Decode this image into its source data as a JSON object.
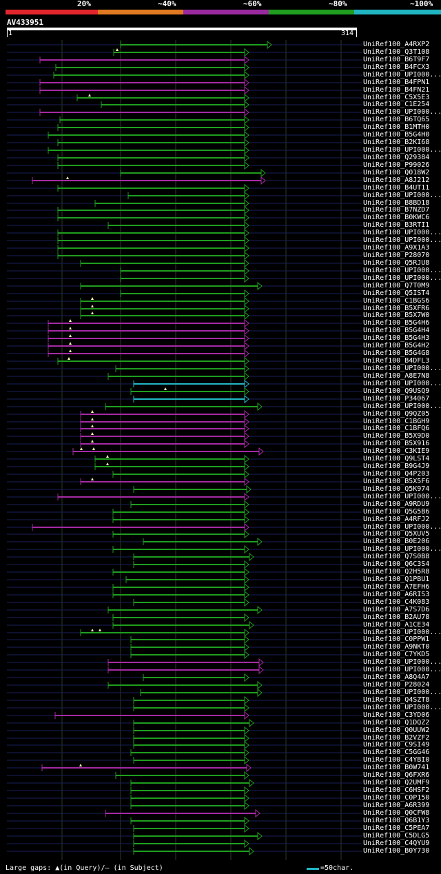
{
  "legend": [
    {
      "label": "20%",
      "color": "#e3262d"
    },
    {
      "label": "~40%",
      "color": "#e07a20"
    },
    {
      "label": "~60%",
      "color": "#9a2aa0"
    },
    {
      "label": "~80%",
      "color": "#1f9e1f"
    },
    {
      "label": "~100%",
      "color": "#21b5c2"
    }
  ],
  "query": {
    "name": "AV433951",
    "start": "1",
    "end": "314"
  },
  "colors": {
    "green": "#1f9e1f",
    "magenta": "#a52aa5",
    "cyan": "#22b8c8",
    "guide": "#1a1f5a",
    "grid": "#2a3a2a"
  },
  "hits": [
    {
      "name": "UniRef100_A4RXP2",
      "start": 175,
      "end": 394,
      "color": "green",
      "arrow": "full",
      "gaps": []
    },
    {
      "name": "UniRef100_Q3T108",
      "start": 165,
      "end": 361,
      "color": "green",
      "arrow": "full",
      "gaps": [
        170
      ]
    },
    {
      "name": "UniRef100_B6T9F7",
      "start": 58,
      "end": 361,
      "color": "magenta",
      "arrow": "full",
      "gaps": []
    },
    {
      "name": "UniRef100_B4FCX3",
      "start": 81,
      "end": 361,
      "color": "green",
      "arrow": "full",
      "gaps": []
    },
    {
      "name": "UniRef100_UPI000...",
      "start": 78,
      "end": 361,
      "color": "green",
      "arrow": "full",
      "gaps": []
    },
    {
      "name": "UniRef100_B4FPN1",
      "start": 58,
      "end": 361,
      "color": "magenta",
      "arrow": "full",
      "gaps": []
    },
    {
      "name": "UniRef100_B4FN21",
      "start": 58,
      "end": 361,
      "color": "magenta",
      "arrow": "full",
      "gaps": []
    },
    {
      "name": "UniRef100_C5X5E3",
      "start": 112,
      "end": 361,
      "color": "green",
      "arrow": "full",
      "gaps": [
        130
      ]
    },
    {
      "name": "UniRef100_C1E254",
      "start": 147,
      "end": 361,
      "color": "green",
      "arrow": "full",
      "gaps": []
    },
    {
      "name": "UniRef100_UPI000...",
      "start": 58,
      "end": 361,
      "color": "magenta",
      "arrow": "full",
      "gaps": []
    },
    {
      "name": "UniRef100_B6TQ65",
      "start": 87,
      "end": 361,
      "color": "green",
      "arrow": "full",
      "gaps": []
    },
    {
      "name": "UniRef100_B1MTH0",
      "start": 84,
      "end": 361,
      "color": "green",
      "arrow": "full",
      "gaps": []
    },
    {
      "name": "UniRef100_B5G4H0",
      "start": 70,
      "end": 361,
      "color": "green",
      "arrow": "full",
      "gaps": []
    },
    {
      "name": "UniRef100_B2KI68",
      "start": 84,
      "end": 361,
      "color": "green",
      "arrow": "full",
      "gaps": []
    },
    {
      "name": "UniRef100_UPI000...",
      "start": 70,
      "end": 361,
      "color": "green",
      "arrow": "full",
      "gaps": []
    },
    {
      "name": "UniRef100_Q29384",
      "start": 84,
      "end": 361,
      "color": "green",
      "arrow": "full",
      "gaps": []
    },
    {
      "name": "UniRef100_P99026",
      "start": 84,
      "end": 361,
      "color": "green",
      "arrow": "full",
      "gaps": []
    },
    {
      "name": "UniRef100_Q018W2",
      "start": 175,
      "end": 385,
      "color": "green",
      "arrow": "full",
      "gaps": []
    },
    {
      "name": "UniRef100_A8J212",
      "start": 47,
      "end": 385,
      "color": "magenta",
      "arrow": "full",
      "gaps": [
        98
      ]
    },
    {
      "name": "UniRef100_B4UT11",
      "start": 84,
      "end": 361,
      "color": "green",
      "arrow": "full",
      "gaps": []
    },
    {
      "name": "UniRef100_UPI000...",
      "start": 186,
      "end": 361,
      "color": "green",
      "arrow": "full",
      "gaps": []
    },
    {
      "name": "UniRef100_B8BD18",
      "start": 138,
      "end": 361,
      "color": "green",
      "arrow": "full",
      "gaps": []
    },
    {
      "name": "UniRef100_B7NZD7",
      "start": 84,
      "end": 361,
      "color": "green",
      "arrow": "full",
      "gaps": []
    },
    {
      "name": "UniRef100_B0KWC6",
      "start": 84,
      "end": 361,
      "color": "green",
      "arrow": "full",
      "gaps": []
    },
    {
      "name": "UniRef100_B3RTI1",
      "start": 157,
      "end": 361,
      "color": "green",
      "arrow": "full",
      "gaps": []
    },
    {
      "name": "UniRef100_UPI000...",
      "start": 84,
      "end": 361,
      "color": "green",
      "arrow": "full",
      "gaps": []
    },
    {
      "name": "UniRef100_UPI000...",
      "start": 84,
      "end": 361,
      "color": "green",
      "arrow": "full",
      "gaps": []
    },
    {
      "name": "UniRef100_A9X1A3",
      "start": 84,
      "end": 361,
      "color": "green",
      "arrow": "full",
      "gaps": []
    },
    {
      "name": "UniRef100_P28070",
      "start": 84,
      "end": 361,
      "color": "green",
      "arrow": "full",
      "gaps": []
    },
    {
      "name": "UniRef100_Q5RJU8",
      "start": 117,
      "end": 361,
      "color": "green",
      "arrow": "full",
      "gaps": []
    },
    {
      "name": "UniRef100_UPI000...",
      "start": 175,
      "end": 361,
      "color": "green",
      "arrow": "full",
      "gaps": []
    },
    {
      "name": "UniRef100_UPI000...",
      "start": 175,
      "end": 361,
      "color": "green",
      "arrow": "full",
      "gaps": []
    },
    {
      "name": "UniRef100_Q7T0M9",
      "start": 117,
      "end": 380,
      "color": "green",
      "arrow": "full",
      "gaps": []
    },
    {
      "name": "UniRef100_Q5IST4",
      "start": 175,
      "end": 361,
      "color": "green",
      "arrow": "full",
      "gaps": []
    },
    {
      "name": "UniRef100_C1BGS6",
      "start": 117,
      "end": 361,
      "color": "green",
      "arrow": "full",
      "gaps": [
        134
      ]
    },
    {
      "name": "UniRef100_B5XFR6",
      "start": 117,
      "end": 361,
      "color": "green",
      "arrow": "full",
      "gaps": [
        134
      ]
    },
    {
      "name": "UniRef100_B5X7W0",
      "start": 117,
      "end": 361,
      "color": "green",
      "arrow": "full",
      "gaps": [
        134
      ]
    },
    {
      "name": "UniRef100_B5G4H6",
      "start": 70,
      "end": 361,
      "color": "magenta",
      "arrow": "full",
      "gaps": [
        102
      ]
    },
    {
      "name": "UniRef100_B5G4H4",
      "start": 70,
      "end": 361,
      "color": "magenta",
      "arrow": "full",
      "gaps": [
        102
      ]
    },
    {
      "name": "UniRef100_B5G4H3",
      "start": 70,
      "end": 361,
      "color": "magenta",
      "arrow": "full",
      "gaps": [
        102
      ]
    },
    {
      "name": "UniRef100_B5G4H2",
      "start": 70,
      "end": 361,
      "color": "magenta",
      "arrow": "full",
      "gaps": [
        102
      ]
    },
    {
      "name": "UniRef100_B5G4G8",
      "start": 70,
      "end": 361,
      "color": "magenta",
      "arrow": "full",
      "gaps": [
        102
      ]
    },
    {
      "name": "UniRef100_B4DFL3",
      "start": 84,
      "end": 361,
      "color": "green",
      "arrow": "full",
      "gaps": [
        100
      ]
    },
    {
      "name": "UniRef100_UPI000...",
      "start": 168,
      "end": 361,
      "color": "green",
      "arrow": "full",
      "gaps": []
    },
    {
      "name": "UniRef100_A8E7N8",
      "start": 157,
      "end": 361,
      "color": "green",
      "arrow": "full",
      "gaps": []
    },
    {
      "name": "UniRef100_UPI000...",
      "start": 194,
      "end": 361,
      "color": "cyan",
      "arrow": "full",
      "gaps": []
    },
    {
      "name": "UniRef100_Q9USQ9",
      "start": 190,
      "end": 361,
      "color": "green",
      "arrow": "full",
      "gaps": [
        240
      ]
    },
    {
      "name": "UniRef100_P34067",
      "start": 194,
      "end": 361,
      "color": "cyan",
      "arrow": "full",
      "gaps": []
    },
    {
      "name": "UniRef100_UPI000...",
      "start": 153,
      "end": 380,
      "color": "green",
      "arrow": "full",
      "gaps": []
    },
    {
      "name": "UniRef100_Q9QZ05",
      "start": 117,
      "end": 361,
      "color": "magenta",
      "arrow": "full",
      "gaps": [
        134
      ]
    },
    {
      "name": "UniRef100_C1BGH9",
      "start": 117,
      "end": 361,
      "color": "magenta",
      "arrow": "full",
      "gaps": [
        134
      ]
    },
    {
      "name": "UniRef100_C1BFQ6",
      "start": 117,
      "end": 361,
      "color": "magenta",
      "arrow": "full",
      "gaps": [
        134
      ]
    },
    {
      "name": "UniRef100_B5X9D0",
      "start": 117,
      "end": 361,
      "color": "magenta",
      "arrow": "full",
      "gaps": [
        134
      ]
    },
    {
      "name": "UniRef100_B5X916",
      "start": 117,
      "end": 361,
      "color": "magenta",
      "arrow": "full",
      "gaps": [
        134
      ]
    },
    {
      "name": "UniRef100_C3KIE9",
      "start": 106,
      "end": 382,
      "color": "magenta",
      "arrow": "full",
      "gaps": [
        118,
        136
      ]
    },
    {
      "name": "UniRef100_Q9LST4",
      "start": 138,
      "end": 361,
      "color": "green",
      "arrow": "full",
      "gaps": [
        156
      ]
    },
    {
      "name": "UniRef100_B9G4J9",
      "start": 138,
      "end": 361,
      "color": "green",
      "arrow": "full",
      "gaps": [
        156
      ]
    },
    {
      "name": "UniRef100_Q4P203",
      "start": 164,
      "end": 361,
      "color": "green",
      "arrow": "full",
      "gaps": []
    },
    {
      "name": "UniRef100_B5X5F6",
      "start": 117,
      "end": 361,
      "color": "magenta",
      "arrow": "full",
      "gaps": [
        134
      ]
    },
    {
      "name": "UniRef100_Q5K974",
      "start": 194,
      "end": 364,
      "color": "green",
      "arrow": "full",
      "gaps": []
    },
    {
      "name": "UniRef100_UPI000...",
      "start": 84,
      "end": 361,
      "color": "magenta",
      "arrow": "full",
      "gaps": []
    },
    {
      "name": "UniRef100_A9RDU9",
      "start": 190,
      "end": 361,
      "color": "green",
      "arrow": "full",
      "gaps": []
    },
    {
      "name": "UniRef100_Q5G5B6",
      "start": 164,
      "end": 361,
      "color": "green",
      "arrow": "full",
      "gaps": []
    },
    {
      "name": "UniRef100_A4RFJ2",
      "start": 164,
      "end": 361,
      "color": "green",
      "arrow": "full",
      "gaps": []
    },
    {
      "name": "UniRef100_UPI000...",
      "start": 47,
      "end": 361,
      "color": "magenta",
      "arrow": "full",
      "gaps": []
    },
    {
      "name": "UniRef100_Q5XUV5",
      "start": 164,
      "end": 361,
      "color": "green",
      "arrow": "full",
      "gaps": []
    },
    {
      "name": "UniRef100_B0E206",
      "start": 208,
      "end": 380,
      "color": "green",
      "arrow": "full",
      "gaps": []
    },
    {
      "name": "UniRef100_UPI000...",
      "start": 164,
      "end": 361,
      "color": "green",
      "arrow": "full",
      "gaps": []
    },
    {
      "name": "UniRef100_Q7S0B8",
      "start": 194,
      "end": 368,
      "color": "green",
      "arrow": "full",
      "gaps": []
    },
    {
      "name": "UniRef100_Q6C3S4",
      "start": 194,
      "end": 361,
      "color": "green",
      "arrow": "full",
      "gaps": []
    },
    {
      "name": "UniRef100_Q2H5R8",
      "start": 164,
      "end": 361,
      "color": "green",
      "arrow": "full",
      "gaps": []
    },
    {
      "name": "UniRef100_Q1PBU1",
      "start": 183,
      "end": 361,
      "color": "green",
      "arrow": "full",
      "gaps": []
    },
    {
      "name": "UniRef100_A7EFH6",
      "start": 164,
      "end": 361,
      "color": "green",
      "arrow": "full",
      "gaps": []
    },
    {
      "name": "UniRef100_A6RIS3",
      "start": 164,
      "end": 361,
      "color": "green",
      "arrow": "full",
      "gaps": []
    },
    {
      "name": "UniRef100_C4K083",
      "start": 194,
      "end": 361,
      "color": "green",
      "arrow": "full",
      "gaps": []
    },
    {
      "name": "UniRef100_A7S7D6",
      "start": 157,
      "end": 380,
      "color": "green",
      "arrow": "full",
      "gaps": []
    },
    {
      "name": "UniRef100_B2AU78",
      "start": 164,
      "end": 361,
      "color": "green",
      "arrow": "full",
      "gaps": []
    },
    {
      "name": "UniRef100_A1CE34",
      "start": 164,
      "end": 368,
      "color": "green",
      "arrow": "full",
      "gaps": []
    },
    {
      "name": "UniRef100_UPI000...",
      "start": 117,
      "end": 361,
      "color": "green",
      "arrow": "full",
      "gaps": [
        134,
        145
      ]
    },
    {
      "name": "UniRef100_C0PPW1",
      "start": 190,
      "end": 361,
      "color": "green",
      "arrow": "full",
      "gaps": []
    },
    {
      "name": "UniRef100_A9NKT0",
      "start": 190,
      "end": 361,
      "color": "green",
      "arrow": "full",
      "gaps": []
    },
    {
      "name": "UniRef100_C7YKD5",
      "start": 190,
      "end": 361,
      "color": "green",
      "arrow": "full",
      "gaps": []
    },
    {
      "name": "UniRef100_UPI000...",
      "start": 157,
      "end": 382,
      "color": "magenta",
      "arrow": "full",
      "gaps": []
    },
    {
      "name": "UniRef100_UPI000...",
      "start": 157,
      "end": 382,
      "color": "magenta",
      "arrow": "full",
      "gaps": []
    },
    {
      "name": "UniRef100_A8Q4A7",
      "start": 208,
      "end": 361,
      "color": "green",
      "arrow": "full",
      "gaps": []
    },
    {
      "name": "UniRef100_P28024",
      "start": 157,
      "end": 380,
      "color": "green",
      "arrow": "full",
      "gaps": []
    },
    {
      "name": "UniRef100_UPI000...",
      "start": 204,
      "end": 380,
      "color": "green",
      "arrow": "full",
      "gaps": []
    },
    {
      "name": "UniRef100_Q4SZT8",
      "start": 194,
      "end": 361,
      "color": "green",
      "arrow": "full",
      "gaps": []
    },
    {
      "name": "UniRef100_UPI000...",
      "start": 194,
      "end": 361,
      "color": "green",
      "arrow": "full",
      "gaps": []
    },
    {
      "name": "UniRef100_C3YD06",
      "start": 80,
      "end": 361,
      "color": "magenta",
      "arrow": "full",
      "gaps": []
    },
    {
      "name": "UniRef100_Q1DQZ2",
      "start": 194,
      "end": 368,
      "color": "green",
      "arrow": "full",
      "gaps": []
    },
    {
      "name": "UniRef100_Q0UUW2",
      "start": 194,
      "end": 361,
      "color": "green",
      "arrow": "full",
      "gaps": []
    },
    {
      "name": "UniRef100_B2VZF2",
      "start": 194,
      "end": 361,
      "color": "green",
      "arrow": "full",
      "gaps": []
    },
    {
      "name": "UniRef100_C9SI49",
      "start": 194,
      "end": 361,
      "color": "green",
      "arrow": "full",
      "gaps": []
    },
    {
      "name": "UniRef100_C5GG46",
      "start": 190,
      "end": 361,
      "color": "green",
      "arrow": "full",
      "gaps": []
    },
    {
      "name": "UniRef100_C4YBI0",
      "start": 194,
      "end": 361,
      "color": "green",
      "arrow": "full",
      "gaps": []
    },
    {
      "name": "UniRef100_B0W741",
      "start": 61,
      "end": 364,
      "color": "magenta",
      "arrow": "full",
      "gaps": [
        117
      ]
    },
    {
      "name": "UniRef100_Q6FXR6",
      "start": 168,
      "end": 361,
      "color": "green",
      "arrow": "full",
      "gaps": []
    },
    {
      "name": "UniRef100_Q2UMF9",
      "start": 190,
      "end": 368,
      "color": "green",
      "arrow": "full",
      "gaps": []
    },
    {
      "name": "UniRef100_C6HSF2",
      "start": 190,
      "end": 361,
      "color": "green",
      "arrow": "full",
      "gaps": []
    },
    {
      "name": "UniRef100_C0P150",
      "start": 190,
      "end": 361,
      "color": "green",
      "arrow": "full",
      "gaps": []
    },
    {
      "name": "UniRef100_A6R399",
      "start": 190,
      "end": 361,
      "color": "green",
      "arrow": "full",
      "gaps": []
    },
    {
      "name": "UniRef100_Q0CFW8",
      "start": 153,
      "end": 377,
      "color": "magenta",
      "arrow": "full",
      "gaps": []
    },
    {
      "name": "UniRef100_Q6B1Y3",
      "start": 190,
      "end": 361,
      "color": "green",
      "arrow": "full",
      "gaps": []
    },
    {
      "name": "UniRef100_C5PEA7",
      "start": 194,
      "end": 361,
      "color": "green",
      "arrow": "full",
      "gaps": []
    },
    {
      "name": "UniRef100_C5DLG5",
      "start": 194,
      "end": 380,
      "color": "green",
      "arrow": "full",
      "gaps": []
    },
    {
      "name": "UniRef100_C4QYU9",
      "start": 194,
      "end": 361,
      "color": "green",
      "arrow": "full",
      "gaps": []
    },
    {
      "name": "UniRef100_B0Y730",
      "start": 194,
      "end": 368,
      "color": "green",
      "arrow": "full",
      "gaps": []
    }
  ],
  "footer": {
    "gaps_text": "Large gaps: ▲(in Query)/– (in Subject)",
    "scale_text": "=50char."
  }
}
